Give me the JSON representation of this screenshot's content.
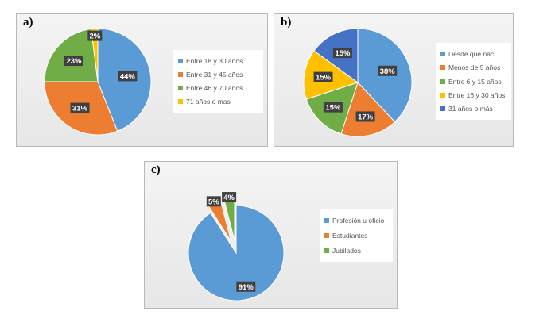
{
  "chart_data": [
    {
      "type": "pie",
      "panel_label": "a)",
      "categories": [
        "Entre 18 y 30 años",
        "Entre 31 y 45 años",
        "Entre 46 y 70 años",
        "71 años o mas"
      ],
      "values": [
        44,
        31,
        23,
        2
      ],
      "data_labels": [
        "44%",
        "31%",
        "23%",
        "2%"
      ],
      "colors": [
        "#5b9bd5",
        "#ed7d31",
        "#70ad47",
        "#ffc000"
      ],
      "legend_position": "right"
    },
    {
      "type": "pie",
      "panel_label": "b)",
      "categories": [
        "Desde que nací",
        "Menos de 5 años",
        "Entre 6 y 15 años",
        "Entre 16 y 30 años",
        "31 años o más"
      ],
      "values": [
        38,
        17,
        15,
        15,
        15
      ],
      "data_labels": [
        "38%",
        "17%",
        "15%",
        "15%",
        "15%"
      ],
      "colors": [
        "#5b9bd5",
        "#ed7d31",
        "#70ad47",
        "#ffc000",
        "#4472c4"
      ],
      "legend_position": "right"
    },
    {
      "type": "pie",
      "panel_label": "c)",
      "categories": [
        "Profesión u oficio",
        "Estudiantes",
        "Jubilados"
      ],
      "values": [
        91,
        5,
        4
      ],
      "data_labels": [
        "91%",
        "5%",
        "4%"
      ],
      "colors": [
        "#5b9bd5",
        "#ed7d31",
        "#70ad47"
      ],
      "exploded": true,
      "legend_position": "right"
    }
  ]
}
